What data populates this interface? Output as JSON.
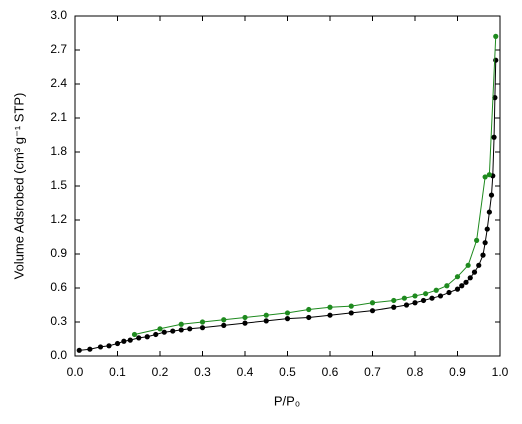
{
  "chart_data": {
    "type": "scatter",
    "xlabel": "P/P₀",
    "ylabel": "Volume Adsrobed  (cm³ g⁻¹ STP)",
    "xlim": [
      0,
      1.0
    ],
    "ylim": [
      0,
      3.0
    ],
    "xticks": [
      {
        "value": 0,
        "label": "0.0"
      },
      0.1,
      0.2,
      0.3,
      0.4,
      0.5,
      0.6,
      0.7,
      0.8,
      0.9,
      {
        "value": 1,
        "label": "1.0"
      }
    ],
    "yticks": [
      {
        "value": 0,
        "label": "0.0"
      },
      0.3,
      0.6,
      0.9,
      1.2,
      1.5,
      1.8,
      2.1,
      2.4,
      2.7,
      {
        "value": 3,
        "label": "3.0"
      }
    ],
    "series": [
      {
        "color": "#000000",
        "x": [
          0.01,
          0.035,
          0.06,
          0.08,
          0.1,
          0.115,
          0.13,
          0.15,
          0.17,
          0.19,
          0.21,
          0.23,
          0.25,
          0.27,
          0.3,
          0.35,
          0.4,
          0.45,
          0.5,
          0.55,
          0.6,
          0.65,
          0.7,
          0.75,
          0.78,
          0.8,
          0.82,
          0.84,
          0.86,
          0.88,
          0.9,
          0.91,
          0.92,
          0.93,
          0.94,
          0.95,
          0.96,
          0.965,
          0.97,
          0.975,
          0.98,
          0.983,
          0.986,
          0.988,
          0.99
        ],
        "values": [
          0.05,
          0.06,
          0.08,
          0.09,
          0.11,
          0.13,
          0.14,
          0.16,
          0.17,
          0.19,
          0.21,
          0.22,
          0.23,
          0.24,
          0.25,
          0.27,
          0.29,
          0.31,
          0.33,
          0.34,
          0.36,
          0.38,
          0.4,
          0.43,
          0.45,
          0.47,
          0.49,
          0.51,
          0.53,
          0.56,
          0.59,
          0.62,
          0.65,
          0.69,
          0.74,
          0.8,
          0.89,
          1.0,
          1.12,
          1.27,
          1.42,
          1.59,
          1.93,
          2.28,
          2.61
        ]
      },
      {
        "color": "#1e8a1e",
        "x": [
          0.99,
          0.975,
          0.965,
          0.945,
          0.925,
          0.9,
          0.875,
          0.85,
          0.825,
          0.8,
          0.775,
          0.75,
          0.7,
          0.65,
          0.6,
          0.55,
          0.5,
          0.45,
          0.4,
          0.35,
          0.3,
          0.25,
          0.2,
          0.14
        ],
        "values": [
          2.82,
          1.6,
          1.58,
          1.02,
          0.8,
          0.7,
          0.62,
          0.58,
          0.55,
          0.53,
          0.51,
          0.49,
          0.47,
          0.44,
          0.43,
          0.41,
          0.38,
          0.36,
          0.34,
          0.32,
          0.3,
          0.28,
          0.24,
          0.19
        ]
      }
    ]
  }
}
